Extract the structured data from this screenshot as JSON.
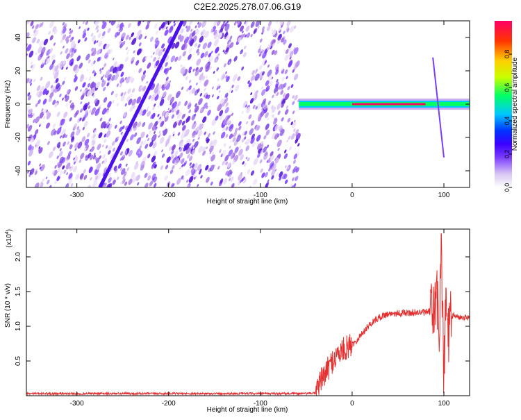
{
  "title": "C2E2.2025.278.07.06.G19",
  "colors": {
    "spectrum": [
      "#ffffff",
      "#d9c7f2",
      "#7a3cff",
      "#3b00ff",
      "#0033ff",
      "#00c8ff",
      "#00ff66",
      "#c8ff00",
      "#ffd000",
      "#ff3300",
      "#ff0066"
    ],
    "snr_line": "#e53030"
  },
  "chart_data": [
    {
      "type": "heatmap",
      "title": "C2E2.2025.278.07.06.G19",
      "xlabel": "Height of straight line (km)",
      "ylabel": "Frequency (Hz)",
      "xlim": [
        -355,
        128
      ],
      "ylim": [
        -50,
        50
      ],
      "x_ticks": [
        -300,
        -200,
        -100,
        0,
        100
      ],
      "x_tick_labels": [
        "-300",
        "-200",
        "-100",
        "0",
        "100"
      ],
      "y_ticks": [
        -40,
        -20,
        0,
        20,
        40
      ],
      "y_tick_labels": [
        "-40",
        "-20",
        "0",
        "20",
        "40"
      ],
      "noise_region": [
        -355,
        -58
      ],
      "diagonal_track": {
        "x": [
          -275,
          -185
        ],
        "y": [
          -50,
          50
        ]
      },
      "signal_track": {
        "x": [
          -58,
          128
        ],
        "y": [
          0,
          0
        ]
      },
      "colorbar": {
        "label": "Normalized spectral amplitude",
        "range": [
          0.0,
          1.0
        ],
        "ticks": [
          0.0,
          0.2,
          0.4,
          0.6,
          0.8
        ],
        "tick_labels": [
          "0.0",
          "0.2",
          "0.4",
          "0.6",
          "0.8"
        ]
      }
    },
    {
      "type": "line",
      "xlabel": "Height of straight line (km)",
      "ylabel": "SNR (10 * v/v)",
      "scale_label": "(x10",
      "scale_exp": "4",
      "scale_close": ")",
      "xlim": [
        -355,
        128
      ],
      "ylim": [
        0,
        24000
      ],
      "x_ticks": [
        -300,
        -200,
        -100,
        0,
        100
      ],
      "x_tick_labels": [
        "-300",
        "-200",
        "-100",
        "0",
        "100"
      ],
      "y_ticks": [
        5000,
        10000,
        15000,
        20000
      ],
      "y_tick_labels": [
        "0.5",
        "1.0",
        "1.5",
        "2.0"
      ],
      "series": [
        {
          "x": [
            -355,
            -300,
            -250,
            -200,
            -150,
            -100,
            -50,
            -40,
            -38,
            -35,
            -30,
            -25,
            -20,
            -15,
            -10,
            -5,
            0,
            5,
            10,
            15,
            20,
            25,
            30,
            35,
            40,
            50,
            60,
            70,
            80,
            85,
            90,
            92,
            95,
            97,
            100,
            102,
            105,
            110,
            115,
            120,
            128
          ],
          "y": [
            300,
            300,
            300,
            300,
            300,
            300,
            300,
            400,
            1500,
            2000,
            3000,
            4200,
            5300,
            6000,
            6600,
            7000,
            7400,
            8000,
            8800,
            9600,
            10400,
            10900,
            11300,
            11600,
            11800,
            11900,
            11900,
            12000,
            12000,
            12100,
            12100,
            15000,
            9000,
            22000,
            2000,
            13500,
            9000,
            11700,
            11300,
            11300,
            11300
          ]
        }
      ]
    }
  ]
}
